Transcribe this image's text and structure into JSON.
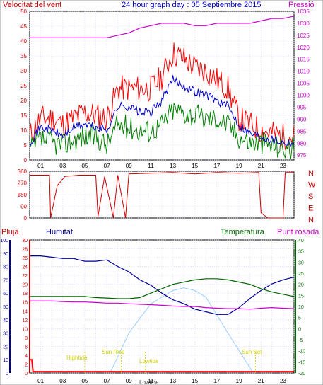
{
  "header": {
    "left": "Velocitat del vent",
    "center": "24 hour graph day : 05 Septiembre 2015",
    "right": "Pressió"
  },
  "labels": {
    "pluja": "Pluja",
    "humitat": "Humitat",
    "temperatura": "Temperatura",
    "punt_rosada": "Punt rosada",
    "high_tide": "Hightide",
    "low_tide": "Lowtide",
    "sun_rise": "Sun Rise",
    "sun_set": "Sun Set",
    "low_tide_axis": "Lowtide"
  },
  "colors": {
    "wind_max": "#ff0000",
    "wind_avg": "#0000cc",
    "wind_min": "#008000",
    "pressure": "#cc00cc",
    "direction": "#cc0000",
    "humidity": "#000099",
    "temperature": "#006600",
    "dewpoint": "#cc00cc",
    "sun": "#99ccff",
    "rain": "#ff0000",
    "tide": "#ffff00",
    "grid": "#ccccff"
  },
  "chart_data": [
    {
      "type": "line",
      "title": "24 hour graph day : 05 Septiembre 2015",
      "xticks": [
        "01",
        "03",
        "05",
        "07",
        "09",
        "11",
        "13",
        "15",
        "17",
        "19",
        "21",
        "23"
      ],
      "xlim": [
        0,
        24
      ],
      "y_left_label": "Velocitat del vent",
      "y_left_ticks": [
        0,
        5,
        10,
        15,
        20,
        25,
        30,
        35,
        40,
        45,
        50
      ],
      "y_right_label": "Pressió",
      "y_right_ticks": [
        975,
        980,
        985,
        990,
        995,
        1000,
        1005,
        1010,
        1015,
        1020,
        1025,
        1030,
        1035
      ],
      "series": [
        {
          "name": "Velocitat del vent max",
          "x": [
            0,
            1,
            2,
            3,
            4,
            5,
            6,
            7,
            8,
            9,
            10,
            11,
            12,
            13,
            14,
            15,
            16,
            17,
            18,
            19,
            20,
            21,
            22,
            23,
            24
          ],
          "values": [
            8,
            14,
            14,
            12,
            14,
            16,
            15,
            14,
            24,
            24,
            24,
            24,
            28,
            36,
            34,
            31,
            30,
            27,
            24,
            14,
            12,
            10,
            9,
            8,
            8
          ]
        },
        {
          "name": "Velocitat del vent mitja",
          "x": [
            0,
            1,
            2,
            3,
            4,
            5,
            6,
            7,
            8,
            9,
            10,
            11,
            12,
            13,
            14,
            15,
            16,
            17,
            18,
            19,
            20,
            21,
            22,
            23,
            24
          ],
          "values": [
            6,
            11,
            10,
            8,
            11,
            12,
            11,
            10,
            18,
            18,
            16,
            16,
            20,
            27,
            25,
            23,
            22,
            20,
            18,
            12,
            9,
            8,
            7,
            6,
            6
          ]
        },
        {
          "name": "Velocitat del vent min",
          "x": [
            0,
            1,
            2,
            3,
            4,
            5,
            6,
            7,
            8,
            9,
            10,
            11,
            12,
            13,
            14,
            15,
            16,
            17,
            18,
            19,
            20,
            21,
            22,
            23,
            24
          ],
          "values": [
            3,
            7,
            6,
            5,
            7,
            8,
            8,
            5,
            12,
            11,
            10,
            10,
            12,
            17,
            16,
            15,
            14,
            14,
            12,
            8,
            6,
            6,
            5,
            4,
            4
          ]
        },
        {
          "name": "Pressió",
          "x": [
            0,
            1,
            2,
            3,
            4,
            5,
            6,
            7,
            8,
            9,
            10,
            11,
            12,
            13,
            14,
            15,
            16,
            17,
            18,
            19,
            20,
            21,
            22,
            23,
            24
          ],
          "values": [
            1024,
            1024,
            1024,
            1024,
            1024,
            1024,
            1024,
            1024,
            1025,
            1026,
            1028,
            1029,
            1030,
            1030,
            1030,
            1029,
            1029,
            1030,
            1030,
            1030,
            1030,
            1031,
            1032,
            1032,
            1033
          ]
        }
      ]
    },
    {
      "type": "line",
      "y_left_ticks": [
        0,
        90,
        180,
        270,
        360
      ],
      "y_right_labels": [
        "N",
        "W",
        "S",
        "E",
        "N"
      ],
      "series": [
        {
          "name": "Direccio del vent",
          "x": [
            0,
            1.8,
            1.9,
            2.5,
            3.2,
            4.5,
            6,
            6.2,
            6.8,
            7.6,
            8,
            8.7,
            9,
            11,
            13,
            15,
            17,
            19,
            20.8,
            21,
            21.6,
            23,
            23.2,
            24
          ],
          "values": [
            330,
            330,
            0,
            250,
            320,
            330,
            330,
            10,
            320,
            0,
            330,
            0,
            340,
            345,
            350,
            340,
            350,
            345,
            350,
            40,
            0,
            0,
            350,
            350
          ]
        }
      ]
    },
    {
      "type": "line",
      "axes": [
        {
          "label": "Humitat",
          "ticks": [
            0,
            10,
            20,
            30,
            40,
            50,
            60,
            70,
            80,
            90,
            100
          ]
        },
        {
          "label": "Pluja",
          "ticks": [
            0,
            2,
            4,
            6,
            8,
            10,
            12,
            14,
            16,
            18,
            20,
            22,
            24,
            26,
            28,
            30
          ]
        },
        {
          "label": "Temperatura",
          "ticks": [
            -20,
            -15,
            -10,
            -5,
            0,
            5,
            10,
            15,
            20,
            25,
            30,
            35,
            40
          ]
        }
      ],
      "xticks": [
        "01",
        "03",
        "05",
        "07",
        "09",
        "11",
        "13",
        "15",
        "17",
        "19",
        "21",
        "23"
      ],
      "series": [
        {
          "name": "Humitat",
          "x": [
            0,
            1,
            2,
            3,
            4,
            5,
            6,
            7,
            8,
            9,
            10,
            11,
            12,
            13,
            14,
            15,
            16,
            17,
            18,
            19,
            20,
            21,
            22,
            23,
            24
          ],
          "values": [
            88,
            88,
            87,
            86,
            86,
            84,
            84,
            85,
            80,
            76,
            70,
            66,
            60,
            55,
            52,
            48,
            46,
            44,
            44,
            49,
            56,
            62,
            67,
            70,
            72
          ]
        },
        {
          "name": "Temperatura",
          "x": [
            0,
            1,
            2,
            3,
            4,
            5,
            6,
            7,
            8,
            9,
            10,
            11,
            12,
            13,
            14,
            15,
            16,
            17,
            18,
            19,
            20,
            21,
            22,
            23,
            24
          ],
          "values": [
            14.5,
            14.5,
            14.5,
            14.5,
            14.5,
            14.5,
            14,
            13.8,
            13.5,
            13.5,
            14,
            16,
            18,
            20,
            21,
            22,
            22.5,
            22.5,
            22,
            21,
            20,
            18,
            16.5,
            15.5,
            14.5
          ]
        },
        {
          "name": "Punt rosada",
          "x": [
            0,
            1,
            2,
            3,
            4,
            5,
            6,
            7,
            8,
            9,
            10,
            11,
            12,
            13,
            14,
            15,
            16,
            17,
            18,
            19,
            20,
            21,
            22,
            23,
            24
          ],
          "values": [
            12.5,
            12.5,
            12.5,
            12.2,
            12,
            12,
            11.8,
            11.5,
            11.5,
            11.2,
            11,
            10.8,
            10.5,
            10.2,
            10,
            10,
            9.5,
            9.2,
            9,
            9,
            8.8,
            9.2,
            9.5,
            9.2,
            9
          ]
        },
        {
          "name": "Sol",
          "x": [
            7.3,
            9,
            11,
            13,
            14,
            15,
            16,
            18,
            20.3
          ],
          "values": [
            0,
            30,
            52,
            62,
            64,
            62,
            57,
            30,
            0
          ]
        },
        {
          "name": "Pluja",
          "x": [
            0,
            0.2,
            0.3,
            24
          ],
          "values": [
            3,
            3,
            0.3,
            0.3
          ]
        }
      ]
    }
  ]
}
